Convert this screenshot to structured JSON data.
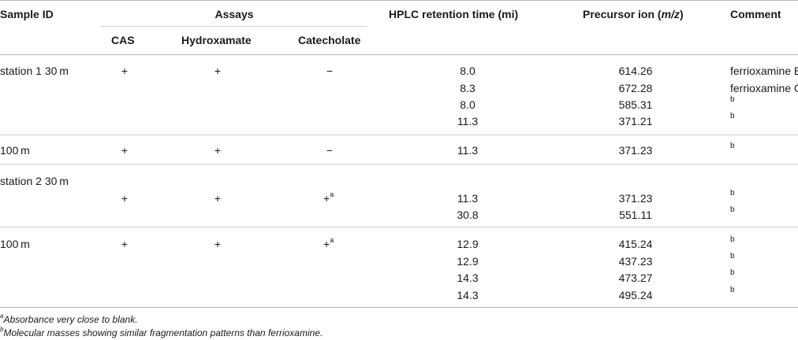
{
  "header": {
    "sample_id": "Sample ID",
    "assays": "Assays",
    "cas": "CAS",
    "hydroxamate": "Hydroxamate",
    "catecholate": "Catecholate",
    "hplc": "HPLC retention time (mi)",
    "precursor_prefix": "Precursor ion (",
    "precursor_unit": "m/z",
    "precursor_suffix": ")",
    "comment": "Comment"
  },
  "rows": {
    "r1": {
      "sample": "station 1 30 m",
      "cas": "+",
      "hyd": "+",
      "cat": "−",
      "entries": [
        {
          "time": "8.0",
          "ion": "614.26",
          "comment": "ferrioxamine B"
        },
        {
          "time": "8.3",
          "ion": "672.28",
          "comment": "ferrioxamine G"
        },
        {
          "time": "8.0",
          "ion": "585.31",
          "comment": "b"
        },
        {
          "time": "11.3",
          "ion": "371.21",
          "comment": "b"
        }
      ]
    },
    "r2": {
      "sample": "100 m",
      "cas": "+",
      "hyd": "+",
      "cat": "−",
      "entries": [
        {
          "time": "11.3",
          "ion": "371.23",
          "comment": "b"
        }
      ]
    },
    "r3": {
      "sample": "station 2 30 m",
      "cas": "+",
      "hyd": "+",
      "cat": "+",
      "cat_sup": "a",
      "entries": [
        {
          "time": "11.3",
          "ion": "371.23",
          "comment": "b"
        },
        {
          "time": "30.8",
          "ion": "551.11",
          "comment": "b"
        }
      ]
    },
    "r4": {
      "sample": "100 m",
      "cas": "+",
      "hyd": "+",
      "cat": "+",
      "cat_sup": "a",
      "entries": [
        {
          "time": "12.9",
          "ion": "415.24",
          "comment": "b"
        },
        {
          "time": "12.9",
          "ion": "437.23",
          "comment": "b"
        },
        {
          "time": "14.3",
          "ion": "473.27",
          "comment": "b"
        },
        {
          "time": "14.3",
          "ion": "495.24",
          "comment": "b"
        }
      ]
    }
  },
  "footnotes": {
    "a_mark": "a",
    "a_text": "Absorbance very close to blank.",
    "b_mark": "b",
    "b_text": "Molecular masses showing similar fragmentation patterns than ferrioxamine."
  }
}
